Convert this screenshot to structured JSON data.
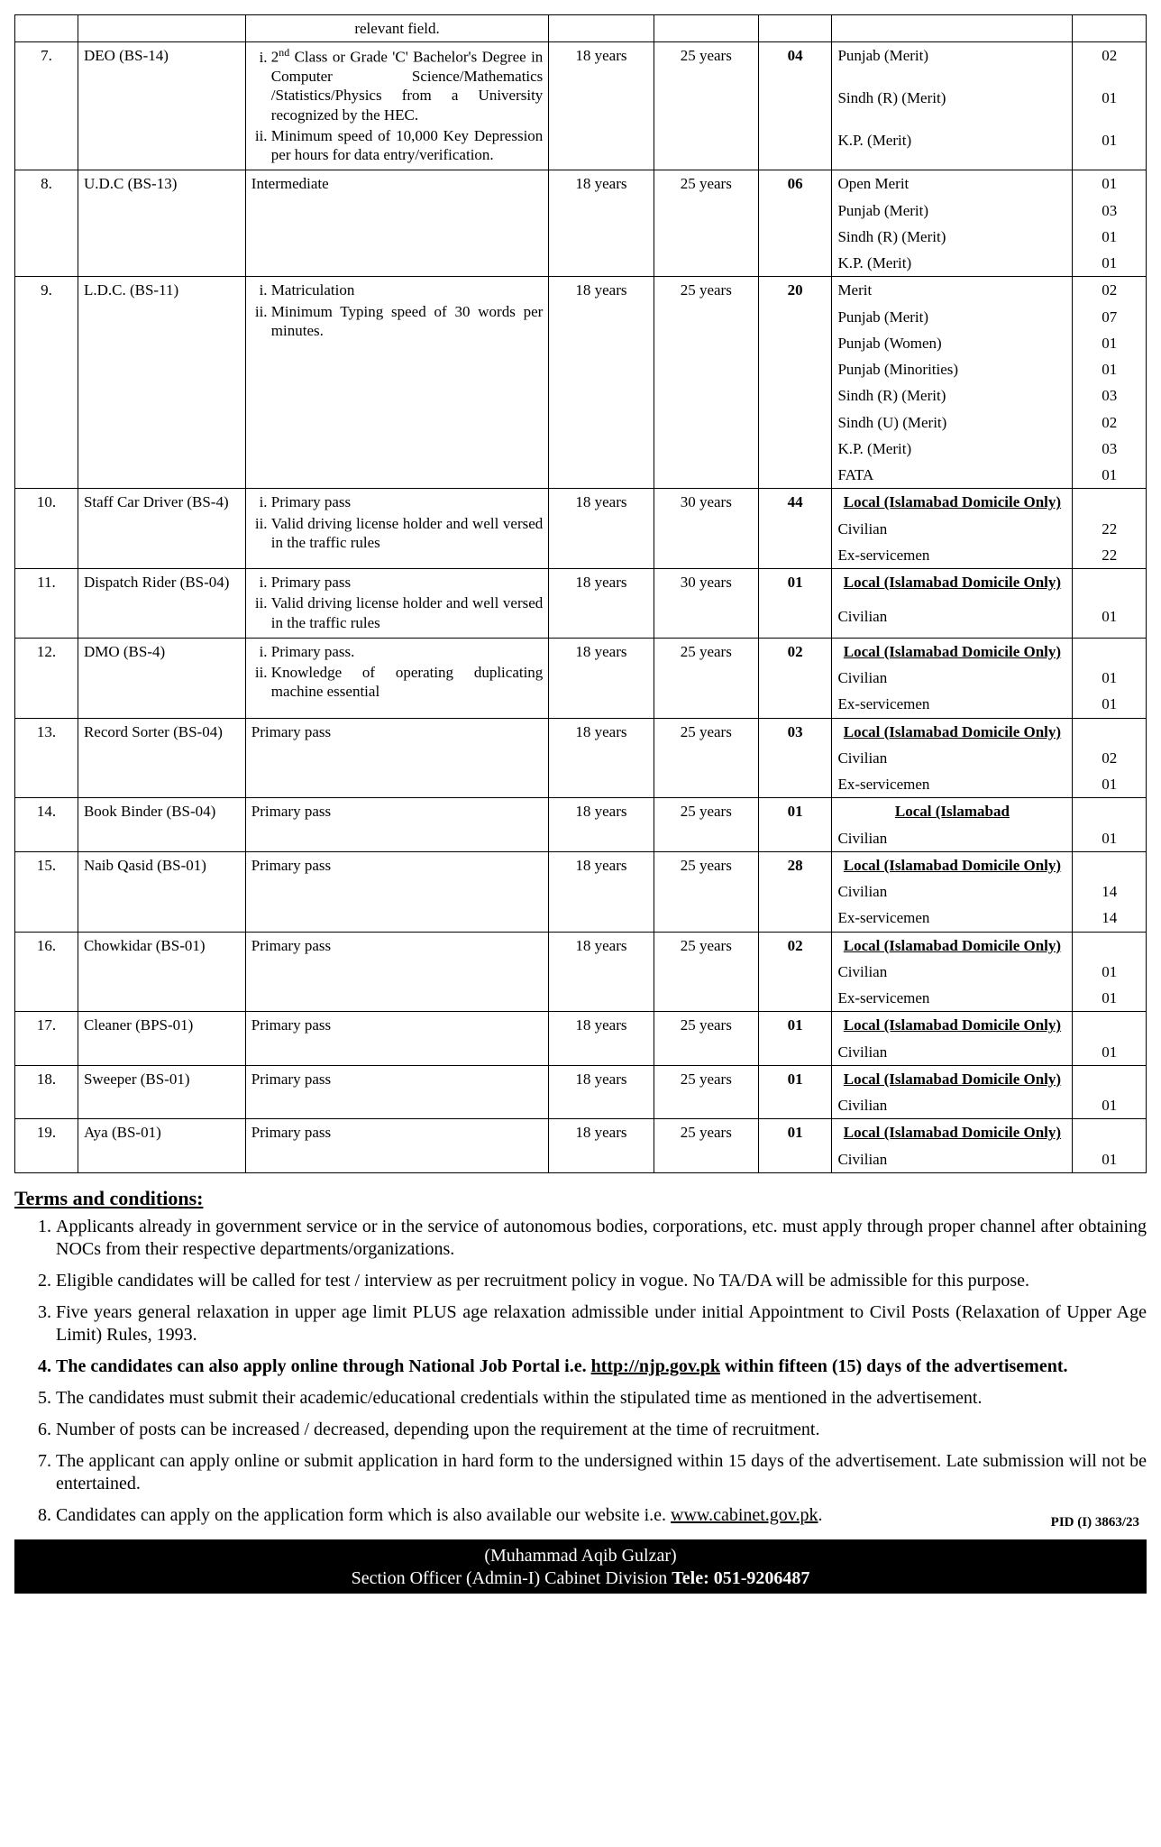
{
  "rows": [
    {
      "sr": "7.",
      "post": "DEO (BS-14)",
      "qualification": "<ol class='qual-list' type='i'><li>2<sup>nd</sup> Class or Grade 'C' Bachelor's Degree in Computer Science/Mathematics /Statistics/Physics from a University recognized by the HEC.</li><li>Minimum speed of 10,000 Key Depression per hours for data entry/verification.</li></ol>",
      "min": "18 years",
      "max": "25 years",
      "count": "04",
      "local_underline": false,
      "quota": [
        {
          "label": "Punjab (Merit)",
          "n": "02"
        },
        {
          "label": "Sindh (R) (Merit)",
          "n": "01"
        },
        {
          "label": "K.P. (Merit)",
          "n": "01"
        }
      ]
    },
    {
      "sr": "8.",
      "post": "U.D.C (BS-13)",
      "qualification": "Intermediate",
      "min": "18 years",
      "max": "25 years",
      "count": "06",
      "local_underline": false,
      "quota": [
        {
          "label": "Open Merit",
          "n": "01"
        },
        {
          "label": "Punjab (Merit)",
          "n": "03"
        },
        {
          "label": "Sindh (R) (Merit)",
          "n": "01"
        },
        {
          "label": "K.P. (Merit)",
          "n": "01"
        }
      ]
    },
    {
      "sr": "9.",
      "post": "L.D.C. (BS-11)",
      "qualification": "<ol class='qual-list' type='i'><li>Matriculation</li><li>Minimum Typing speed of 30 words per minutes.</li></ol>",
      "min": "18 years",
      "max": "25 years",
      "count": "20",
      "local_underline": false,
      "quota": [
        {
          "label": "Merit",
          "n": "02"
        },
        {
          "label": "Punjab (Merit)",
          "n": "07"
        },
        {
          "label": "Punjab (Women)",
          "n": "01"
        },
        {
          "label": "Punjab (Minorities)",
          "n": "01"
        },
        {
          "label": "Sindh (R) (Merit)",
          "n": "03"
        },
        {
          "label": "Sindh (U) (Merit)",
          "n": "02"
        },
        {
          "label": "K.P. (Merit)",
          "n": "03"
        },
        {
          "label": "FATA",
          "n": "01"
        }
      ]
    },
    {
      "sr": "10.",
      "post": "Staff Car Driver (BS-4)",
      "qualification": "<ol class='qual-list' type='i'><li>Primary pass</li><li>Valid driving license holder and well versed in the traffic rules</li></ol>",
      "min": "18 years",
      "max": "30 years",
      "count": "44",
      "local_underline": true,
      "quota": [
        {
          "label": "Civilian",
          "n": "22"
        },
        {
          "label": "Ex-servicemen",
          "n": "22"
        }
      ]
    },
    {
      "sr": "11.",
      "post": "Dispatch Rider (BS-04)",
      "qualification": "<ol class='qual-list' type='i'><li>Primary pass</li><li>Valid driving license holder and well versed in the traffic rules</li></ol>",
      "min": "18 years",
      "max": "30 years",
      "count": "01",
      "local_underline": true,
      "quota": [
        {
          "label": "Civilian",
          "n": "01"
        }
      ]
    },
    {
      "sr": "12.",
      "post": "DMO (BS-4)",
      "qualification": "<ol class='qual-list' type='i'><li>Primary pass.</li><li>Knowledge of operating duplicating machine essential</li></ol>",
      "min": "18 years",
      "max": "25 years",
      "count": "02",
      "local_underline": true,
      "quota": [
        {
          "label": "Civilian",
          "n": "01"
        },
        {
          "label": "Ex-servicemen",
          "n": "01"
        }
      ]
    },
    {
      "sr": "13.",
      "post": "Record Sorter (BS-04)",
      "qualification": "Primary pass",
      "min": "18 years",
      "max": "25 years",
      "count": "03",
      "local_underline": true,
      "quota": [
        {
          "label": "Civilian",
          "n": "02"
        },
        {
          "label": "Ex-servicemen",
          "n": "01"
        }
      ]
    },
    {
      "sr": "14.",
      "post": "Book Binder (BS-04)",
      "qualification": "Primary pass",
      "min": "18 years",
      "max": "25 years",
      "count": "01",
      "local_underline": true,
      "local_text": "Local (Islamabad",
      "quota": [
        {
          "label": "Civilian",
          "n": "01"
        }
      ]
    },
    {
      "sr": "15.",
      "post": "Naib Qasid (BS-01)",
      "qualification": "Primary pass",
      "min": "18 years",
      "max": "25 years",
      "count": "28",
      "local_underline": true,
      "quota": [
        {
          "label": "Civilian",
          "n": "14"
        },
        {
          "label": "Ex-servicemen",
          "n": "14"
        }
      ]
    },
    {
      "sr": "16.",
      "post": "Chowkidar (BS-01)",
      "qualification": "Primary pass",
      "min": "18 years",
      "max": "25 years",
      "count": "02",
      "local_underline": true,
      "quota": [
        {
          "label": "Civilian",
          "n": "01"
        },
        {
          "label": "Ex-servicemen",
          "n": "01"
        }
      ]
    },
    {
      "sr": "17.",
      "post": "Cleaner (BPS-01)",
      "qualification": "Primary pass",
      "min": "18 years",
      "max": "25 years",
      "count": "01",
      "local_underline": true,
      "quota": [
        {
          "label": "Civilian",
          "n": "01"
        }
      ]
    },
    {
      "sr": "18.",
      "post": "Sweeper (BS-01)",
      "qualification": "Primary pass",
      "min": "18 years",
      "max": "25 years",
      "count": "01",
      "local_underline": true,
      "quota": [
        {
          "label": "Civilian",
          "n": "01"
        }
      ]
    },
    {
      "sr": "19.",
      "post": "Aya (BS-01)",
      "qualification": "Primary pass",
      "min": "18 years",
      "max": "25 years",
      "count": "01",
      "local_underline": true,
      "quota": [
        {
          "label": "Civilian",
          "n": "01"
        }
      ]
    }
  ],
  "local_heading": "Local (Islamabad Domicile Only)",
  "prev_fragment": "relevant field.",
  "terms_heading": "Terms and conditions:",
  "terms": [
    {
      "t": "Applicants already in government service or in the service of autonomous bodies, corporations, etc. must apply through proper channel after obtaining NOCs from their respective departments/organizations.",
      "bold": false
    },
    {
      "t": "Eligible candidates will be called for test / interview as per recruitment policy in vogue. No TA/DA will be admissible for this purpose.",
      "bold": false
    },
    {
      "t": "Five years general relaxation in upper age limit PLUS age relaxation admissible under initial Appointment to Civil Posts (Relaxation of Upper Age Limit) Rules, 1993.",
      "bold": false
    },
    {
      "t": "The candidates can also apply online through National Job Portal i.e. <span class='u'>http://njp.gov.pk</span> within fifteen (15) days of the advertisement.",
      "bold": true
    },
    {
      "t": "The candidates must submit their academic/educational credentials within the stipulated time as mentioned in the advertisement.",
      "bold": false
    },
    {
      "t": "Number of posts can be increased / decreased, depending upon the requirement at the time of recruitment.",
      "bold": false
    },
    {
      "t": "The applicant can apply online or submit application in hard form to the undersigned within 15 days of the advertisement. Late submission will not be entertained.",
      "bold": false
    },
    {
      "t": "Candidates can apply on the application form which is also available our website i.e. <span class='u'>www.cabinet.gov.pk</span>.",
      "bold": false
    }
  ],
  "pid": "PID (I) 3863/23",
  "footer_name": "(Muhammad Aqib Gulzar)",
  "footer_line2_a": "Section Officer (Admin-I) Cabinet Division ",
  "footer_tele": "Tele: 051-9206487"
}
